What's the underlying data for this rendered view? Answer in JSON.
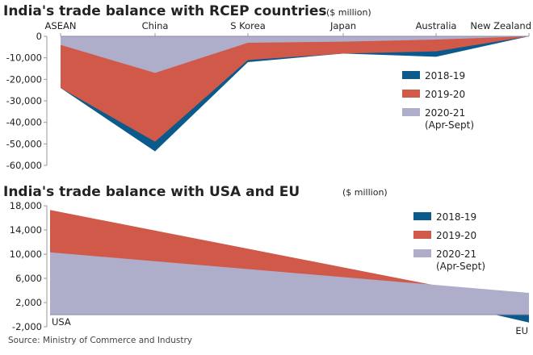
{
  "colors": {
    "2018-19": "#0b5a8c",
    "2019-20": "#d0594a",
    "2020-21": "#aeaecb",
    "axis": "#9a9a9a"
  },
  "source": "Source: Ministry of Commerce and Industry",
  "chart_data": [
    {
      "type": "area",
      "title": "India's trade balance with RCEP countries",
      "unit": "($ million)",
      "categories": [
        "ASEAN",
        "China",
        "S Korea",
        "Japan",
        "Australia",
        "New Zealand"
      ],
      "yticks": [
        "0",
        "-10,000",
        "-20,000",
        "-30,000",
        "-40,000",
        "-50,000",
        "-60,000"
      ],
      "ytick_values": [
        0,
        -10000,
        -20000,
        -30000,
        -40000,
        -50000,
        -60000
      ],
      "ylim": [
        -60000,
        0
      ],
      "legend": [
        "2018-19",
        "2019-20",
        "2020-21",
        "(Apr-Sept)"
      ],
      "legend_placement": "right",
      "series": [
        {
          "name": "2018-19",
          "values": [
            -24000,
            -53500,
            -12000,
            -8000,
            -9500,
            0
          ]
        },
        {
          "name": "2019-20",
          "values": [
            -24000,
            -49000,
            -11000,
            -8000,
            -7000,
            0
          ]
        },
        {
          "name": "2020-21",
          "values": [
            -4000,
            -17000,
            -3000,
            -2500,
            -1500,
            0
          ]
        }
      ]
    },
    {
      "type": "area",
      "title": "India's trade balance with USA and EU",
      "unit": "($ million)",
      "categories": [
        "USA",
        "EU"
      ],
      "yticks": [
        "18,000",
        "14,000",
        "10,000",
        "6,000",
        "2,000",
        "-2,000"
      ],
      "ytick_values": [
        18000,
        14000,
        10000,
        6000,
        2000,
        -2000
      ],
      "ylim": [
        -2000,
        18000
      ],
      "legend": [
        "2018-19",
        "2019-20",
        "2020-21",
        "(Apr-Sept)"
      ],
      "legend_placement": "right",
      "series": [
        {
          "name": "2018-19",
          "values": [
            16900,
            -1300
          ]
        },
        {
          "name": "2019-20",
          "values": [
            17300,
            1800
          ]
        },
        {
          "name": "2020-21",
          "values": [
            10300,
            3600
          ]
        }
      ]
    }
  ]
}
